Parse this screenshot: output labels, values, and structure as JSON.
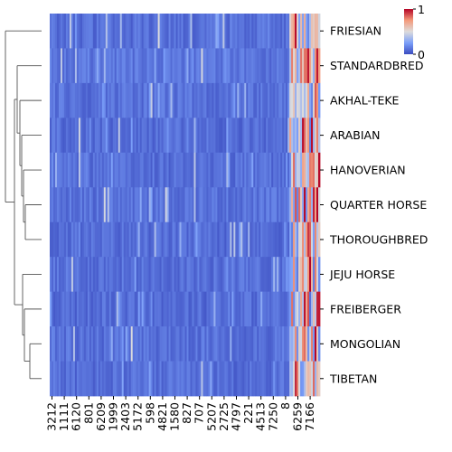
{
  "chart_data": {
    "type": "heatmap",
    "title": "",
    "xlabel": "",
    "ylabel": "",
    "rows": [
      "FRIESIAN",
      "STANDARDBRED",
      "AKHAL-TEKE",
      "ARABIAN",
      "HANOVERIAN",
      "QUARTER HORSE",
      "THOROUGHBRED",
      "JEJU HORSE",
      "FREIBERGER",
      "MONGOLIAN",
      "TIBETAN"
    ],
    "x_tick_labels": [
      "3212",
      "1111",
      "6120",
      "801",
      "6209",
      "1999",
      "2403",
      "5172",
      "598",
      "4821",
      "1580",
      "827",
      "707",
      "5207",
      "2725",
      "4797",
      "221",
      "4513",
      "7250",
      "8",
      "6259",
      "7166"
    ],
    "value_range": [
      0,
      1
    ],
    "colormap": "coolwarm",
    "colorbar_ticks": [
      "1",
      "0"
    ],
    "row_dendrogram": true,
    "dendrogram_side": "left",
    "approx_row_means": [
      0.12,
      0.16,
      0.14,
      0.1,
      0.12,
      0.14,
      0.1,
      0.12,
      0.1,
      0.12,
      0.1
    ]
  }
}
